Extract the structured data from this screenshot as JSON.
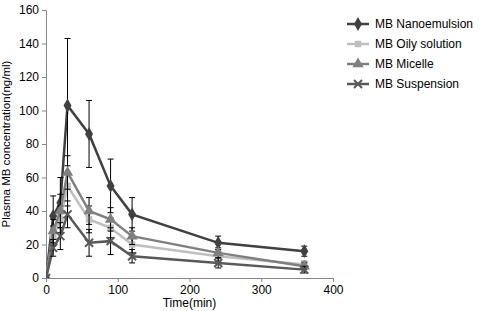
{
  "chart_data": {
    "type": "line",
    "x_label": "Time(min)",
    "y_label": "Plasma MB concentration(ng/ml)",
    "x": [
      0,
      10,
      20,
      30,
      60,
      90,
      120,
      240,
      360
    ],
    "series": [
      {
        "name": "MB Nanoemulsion",
        "color": "#404040",
        "marker": "diamond",
        "values": [
          0,
          37,
          45,
          103,
          86,
          55,
          38,
          21,
          16
        ],
        "errors": [
          0,
          12,
          15,
          40,
          20,
          16,
          10,
          4,
          3
        ]
      },
      {
        "name": "MB Oily solution",
        "color": "#bfbfbf",
        "marker": "square",
        "values": [
          0,
          25,
          35,
          55,
          35,
          30,
          20,
          13,
          8
        ],
        "errors": [
          0,
          6,
          8,
          12,
          8,
          6,
          5,
          3,
          2
        ]
      },
      {
        "name": "MB Micelle",
        "color": "#808080",
        "marker": "triangle",
        "values": [
          0,
          28,
          40,
          63,
          40,
          35,
          25,
          15,
          7
        ],
        "errors": [
          0,
          7,
          10,
          10,
          8,
          7,
          5,
          3,
          2
        ]
      },
      {
        "name": "MB Suspension",
        "color": "#595959",
        "marker": "x",
        "values": [
          0,
          18,
          25,
          38,
          21,
          22,
          13,
          9,
          5
        ],
        "errors": [
          0,
          5,
          8,
          8,
          8,
          8,
          4,
          3,
          2
        ]
      }
    ],
    "xlim": [
      0,
      400
    ],
    "xticks": [
      0,
      100,
      200,
      300,
      400
    ],
    "ylim": [
      0,
      160
    ],
    "yticks": [
      0,
      20,
      40,
      60,
      80,
      100,
      120,
      140,
      160
    ],
    "grid": false,
    "legend": "right"
  }
}
